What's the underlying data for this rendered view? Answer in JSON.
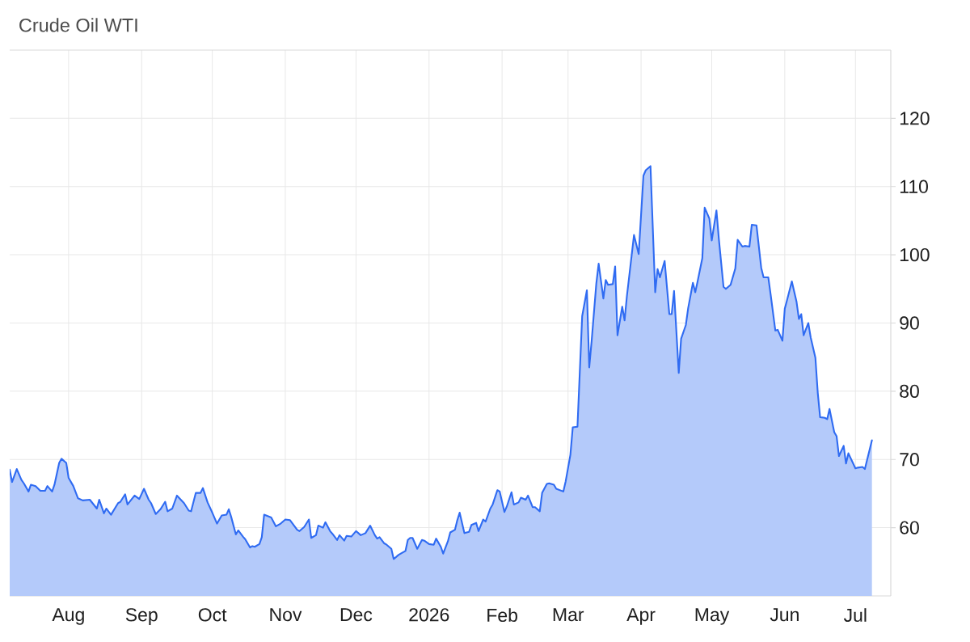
{
  "chart_data": {
    "type": "area",
    "title": "Crude Oil WTI",
    "x": [
      "2025-07-07",
      "2025-07-08",
      "2025-07-10",
      "2025-07-12",
      "2025-07-13",
      "2025-07-15",
      "2025-07-16",
      "2025-07-18",
      "2025-07-20",
      "2025-07-22",
      "2025-07-23",
      "2025-07-25",
      "2025-07-26",
      "2025-07-28",
      "2025-07-29",
      "2025-07-31",
      "2025-08-01",
      "2025-08-03",
      "2025-08-05",
      "2025-08-07",
      "2025-08-10",
      "2025-08-13",
      "2025-08-14",
      "2025-08-16",
      "2025-08-17",
      "2025-08-19",
      "2025-08-22",
      "2025-08-23",
      "2025-08-25",
      "2025-08-26",
      "2025-08-29",
      "2025-08-31",
      "2025-09-02",
      "2025-09-04",
      "2025-09-05",
      "2025-09-07",
      "2025-09-09",
      "2025-09-11",
      "2025-09-12",
      "2025-09-14",
      "2025-09-16",
      "2025-09-19",
      "2025-09-21",
      "2025-09-22",
      "2025-09-24",
      "2025-09-26",
      "2025-09-27",
      "2025-09-29",
      "2025-10-01",
      "2025-10-03",
      "2025-10-05",
      "2025-10-07",
      "2025-10-08",
      "2025-10-09",
      "2025-10-11",
      "2025-10-12",
      "2025-10-14",
      "2025-10-15",
      "2025-10-17",
      "2025-10-18",
      "2025-10-19",
      "2025-10-21",
      "2025-10-22",
      "2025-10-23",
      "2025-10-26",
      "2025-10-28",
      "2025-10-30",
      "2025-11-01",
      "2025-11-03",
      "2025-11-06",
      "2025-11-07",
      "2025-11-09",
      "2025-11-11",
      "2025-11-12",
      "2025-11-14",
      "2025-11-15",
      "2025-11-17",
      "2025-11-18",
      "2025-11-20",
      "2025-11-21",
      "2025-11-23",
      "2025-11-24",
      "2025-11-26",
      "2025-11-27",
      "2025-11-29",
      "2025-12-01",
      "2025-12-03",
      "2025-12-05",
      "2025-12-07",
      "2025-12-09",
      "2025-12-10",
      "2025-12-11",
      "2025-12-13",
      "2025-12-14",
      "2025-12-16",
      "2025-12-17",
      "2025-12-19",
      "2025-12-20",
      "2025-12-22",
      "2025-12-23",
      "2025-12-24",
      "2025-12-25",
      "2025-12-27",
      "2025-12-29",
      "2025-12-30",
      "2026-01-01",
      "2026-01-03",
      "2026-01-04",
      "2026-01-06",
      "2026-01-07",
      "2026-01-09",
      "2026-01-10",
      "2026-01-12",
      "2026-01-13",
      "2026-01-14",
      "2026-01-16",
      "2026-01-18",
      "2026-01-19",
      "2026-01-21",
      "2026-01-22",
      "2026-01-24",
      "2026-01-25",
      "2026-01-27",
      "2026-01-28",
      "2026-01-30",
      "2026-01-31",
      "2026-02-02",
      "2026-02-03",
      "2026-02-05",
      "2026-02-06",
      "2026-02-08",
      "2026-02-09",
      "2026-02-11",
      "2026-02-12",
      "2026-02-14",
      "2026-02-15",
      "2026-02-17",
      "2026-02-18",
      "2026-02-20",
      "2026-02-21",
      "2026-02-23",
      "2026-02-24",
      "2026-02-27",
      "2026-02-28",
      "2026-03-02",
      "2026-03-03",
      "2026-03-05",
      "2026-03-07",
      "2026-03-09",
      "2026-03-10",
      "2026-03-11",
      "2026-03-13",
      "2026-03-14",
      "2026-03-16",
      "2026-03-17",
      "2026-03-18",
      "2026-03-20",
      "2026-03-21",
      "2026-03-22",
      "2026-03-24",
      "2026-03-25",
      "2026-03-26",
      "2026-03-28",
      "2026-03-29",
      "2026-03-30",
      "2026-03-31",
      "2026-04-02",
      "2026-04-03",
      "2026-04-05",
      "2026-04-07",
      "2026-04-08",
      "2026-04-09",
      "2026-04-11",
      "2026-04-13",
      "2026-04-14",
      "2026-04-15",
      "2026-04-17",
      "2026-04-18",
      "2026-04-20",
      "2026-04-21",
      "2026-04-23",
      "2026-04-24",
      "2026-04-25",
      "2026-04-27",
      "2026-04-28",
      "2026-04-30",
      "2026-05-01",
      "2026-05-03",
      "2026-05-04",
      "2026-05-06",
      "2026-05-07",
      "2026-05-09",
      "2026-05-11",
      "2026-05-12",
      "2026-05-14",
      "2026-05-15",
      "2026-05-17",
      "2026-05-18",
      "2026-05-20",
      "2026-05-22",
      "2026-05-23",
      "2026-05-25",
      "2026-05-26",
      "2026-05-28",
      "2026-05-29",
      "2026-05-31",
      "2026-06-01",
      "2026-06-02",
      "2026-06-04",
      "2026-06-06",
      "2026-06-07",
      "2026-06-08",
      "2026-06-09",
      "2026-06-11",
      "2026-06-12",
      "2026-06-14",
      "2026-06-15",
      "2026-06-16",
      "2026-06-18",
      "2026-06-19",
      "2026-06-20",
      "2026-06-22",
      "2026-06-23",
      "2026-06-24",
      "2026-06-26",
      "2026-06-27",
      "2026-06-28",
      "2026-07-01",
      "2026-07-02",
      "2026-07-04",
      "2026-07-05",
      "2026-07-08"
    ],
    "series": [
      {
        "color": "#2f6bf2",
        "values": [
          68.5,
          66.7,
          68.6,
          67.0,
          66.5,
          65.3,
          66.3,
          66.1,
          65.4,
          65.4,
          66.1,
          65.3,
          66.3,
          69.5,
          70.1,
          69.5,
          67.3,
          66.1,
          64.3,
          64.0,
          64.1,
          62.8,
          64.1,
          62.1,
          62.8,
          61.9,
          63.6,
          63.8,
          64.9,
          63.4,
          64.7,
          64.2,
          65.7,
          64.1,
          63.6,
          62.0,
          62.7,
          63.8,
          62.4,
          62.8,
          64.7,
          63.6,
          62.5,
          62.4,
          65.1,
          65.1,
          65.8,
          63.7,
          62.2,
          60.6,
          61.8,
          61.9,
          62.7,
          61.6,
          59.0,
          59.6,
          58.7,
          58.3,
          57.1,
          57.3,
          57.2,
          57.6,
          58.6,
          61.9,
          61.5,
          60.2,
          60.6,
          61.2,
          61.1,
          59.7,
          59.5,
          60.1,
          61.2,
          58.5,
          58.9,
          60.3,
          60.0,
          60.8,
          59.5,
          59.1,
          58.2,
          58.9,
          58.1,
          58.8,
          58.7,
          59.5,
          58.9,
          59.2,
          60.3,
          58.9,
          58.4,
          58.6,
          57.7,
          57.5,
          56.9,
          55.4,
          56.0,
          56.2,
          56.6,
          58.2,
          58.5,
          58.5,
          56.9,
          58.2,
          58.1,
          57.6,
          57.5,
          58.4,
          57.2,
          56.2,
          58.0,
          59.3,
          59.7,
          61.1,
          62.2,
          59.2,
          59.4,
          60.4,
          60.7,
          59.5,
          61.2,
          60.9,
          62.8,
          63.4,
          65.5,
          65.3,
          62.3,
          63.1,
          65.2,
          63.4,
          63.7,
          64.4,
          64.1,
          64.7,
          63.0,
          63.0,
          62.4,
          65.1,
          66.4,
          66.5,
          66.3,
          65.7,
          65.3,
          66.8,
          70.7,
          74.7,
          74.8,
          91.0,
          94.8,
          83.5,
          87.3,
          95.8,
          98.7,
          93.6,
          96.3,
          95.6,
          95.7,
          98.3,
          88.2,
          92.4,
          90.4,
          94.0,
          99.9,
          102.9,
          101.5,
          100.1,
          111.6,
          112.4,
          113.0,
          94.5,
          97.9,
          96.7,
          99.1,
          91.3,
          91.3,
          94.7,
          82.7,
          87.7,
          89.7,
          92.2,
          95.9,
          94.5,
          96.1,
          99.5,
          106.9,
          105.3,
          102.1,
          106.5,
          102.4,
          95.3,
          95.0,
          95.6,
          98.0,
          102.2,
          101.2,
          101.3,
          101.2,
          104.4,
          104.3,
          98.1,
          96.7,
          96.7,
          94.2,
          88.9,
          89.0,
          87.4,
          92.1,
          93.4,
          96.1,
          93.1,
          90.6,
          91.3,
          88.2,
          90.0,
          87.9,
          84.9,
          79.8,
          76.2,
          76.1,
          75.9,
          77.4,
          74.0,
          73.4,
          70.5,
          72.0,
          69.4,
          70.9,
          68.7,
          68.8,
          68.9,
          68.6,
          72.8
        ]
      }
    ],
    "xlim": [
      "2025-07-07",
      "2026-07-16"
    ],
    "ylim": [
      50,
      130
    ],
    "xticks": [
      {
        "value": "2025-08-01",
        "label": "Aug"
      },
      {
        "value": "2025-09-01",
        "label": "Sep"
      },
      {
        "value": "2025-10-01",
        "label": "Oct"
      },
      {
        "value": "2025-11-01",
        "label": "Nov"
      },
      {
        "value": "2025-12-01",
        "label": "Dec"
      },
      {
        "value": "2026-01-01",
        "label": "2026"
      },
      {
        "value": "2026-02-01",
        "label": "Feb"
      },
      {
        "value": "2026-03-01",
        "label": "Mar"
      },
      {
        "value": "2026-04-01",
        "label": "Apr"
      },
      {
        "value": "2026-05-01",
        "label": "May"
      },
      {
        "value": "2026-06-01",
        "label": "Jun"
      },
      {
        "value": "2026-07-01",
        "label": "Jul"
      }
    ],
    "yticks": [
      60,
      70,
      80,
      90,
      100,
      110,
      120
    ],
    "grid": true
  }
}
